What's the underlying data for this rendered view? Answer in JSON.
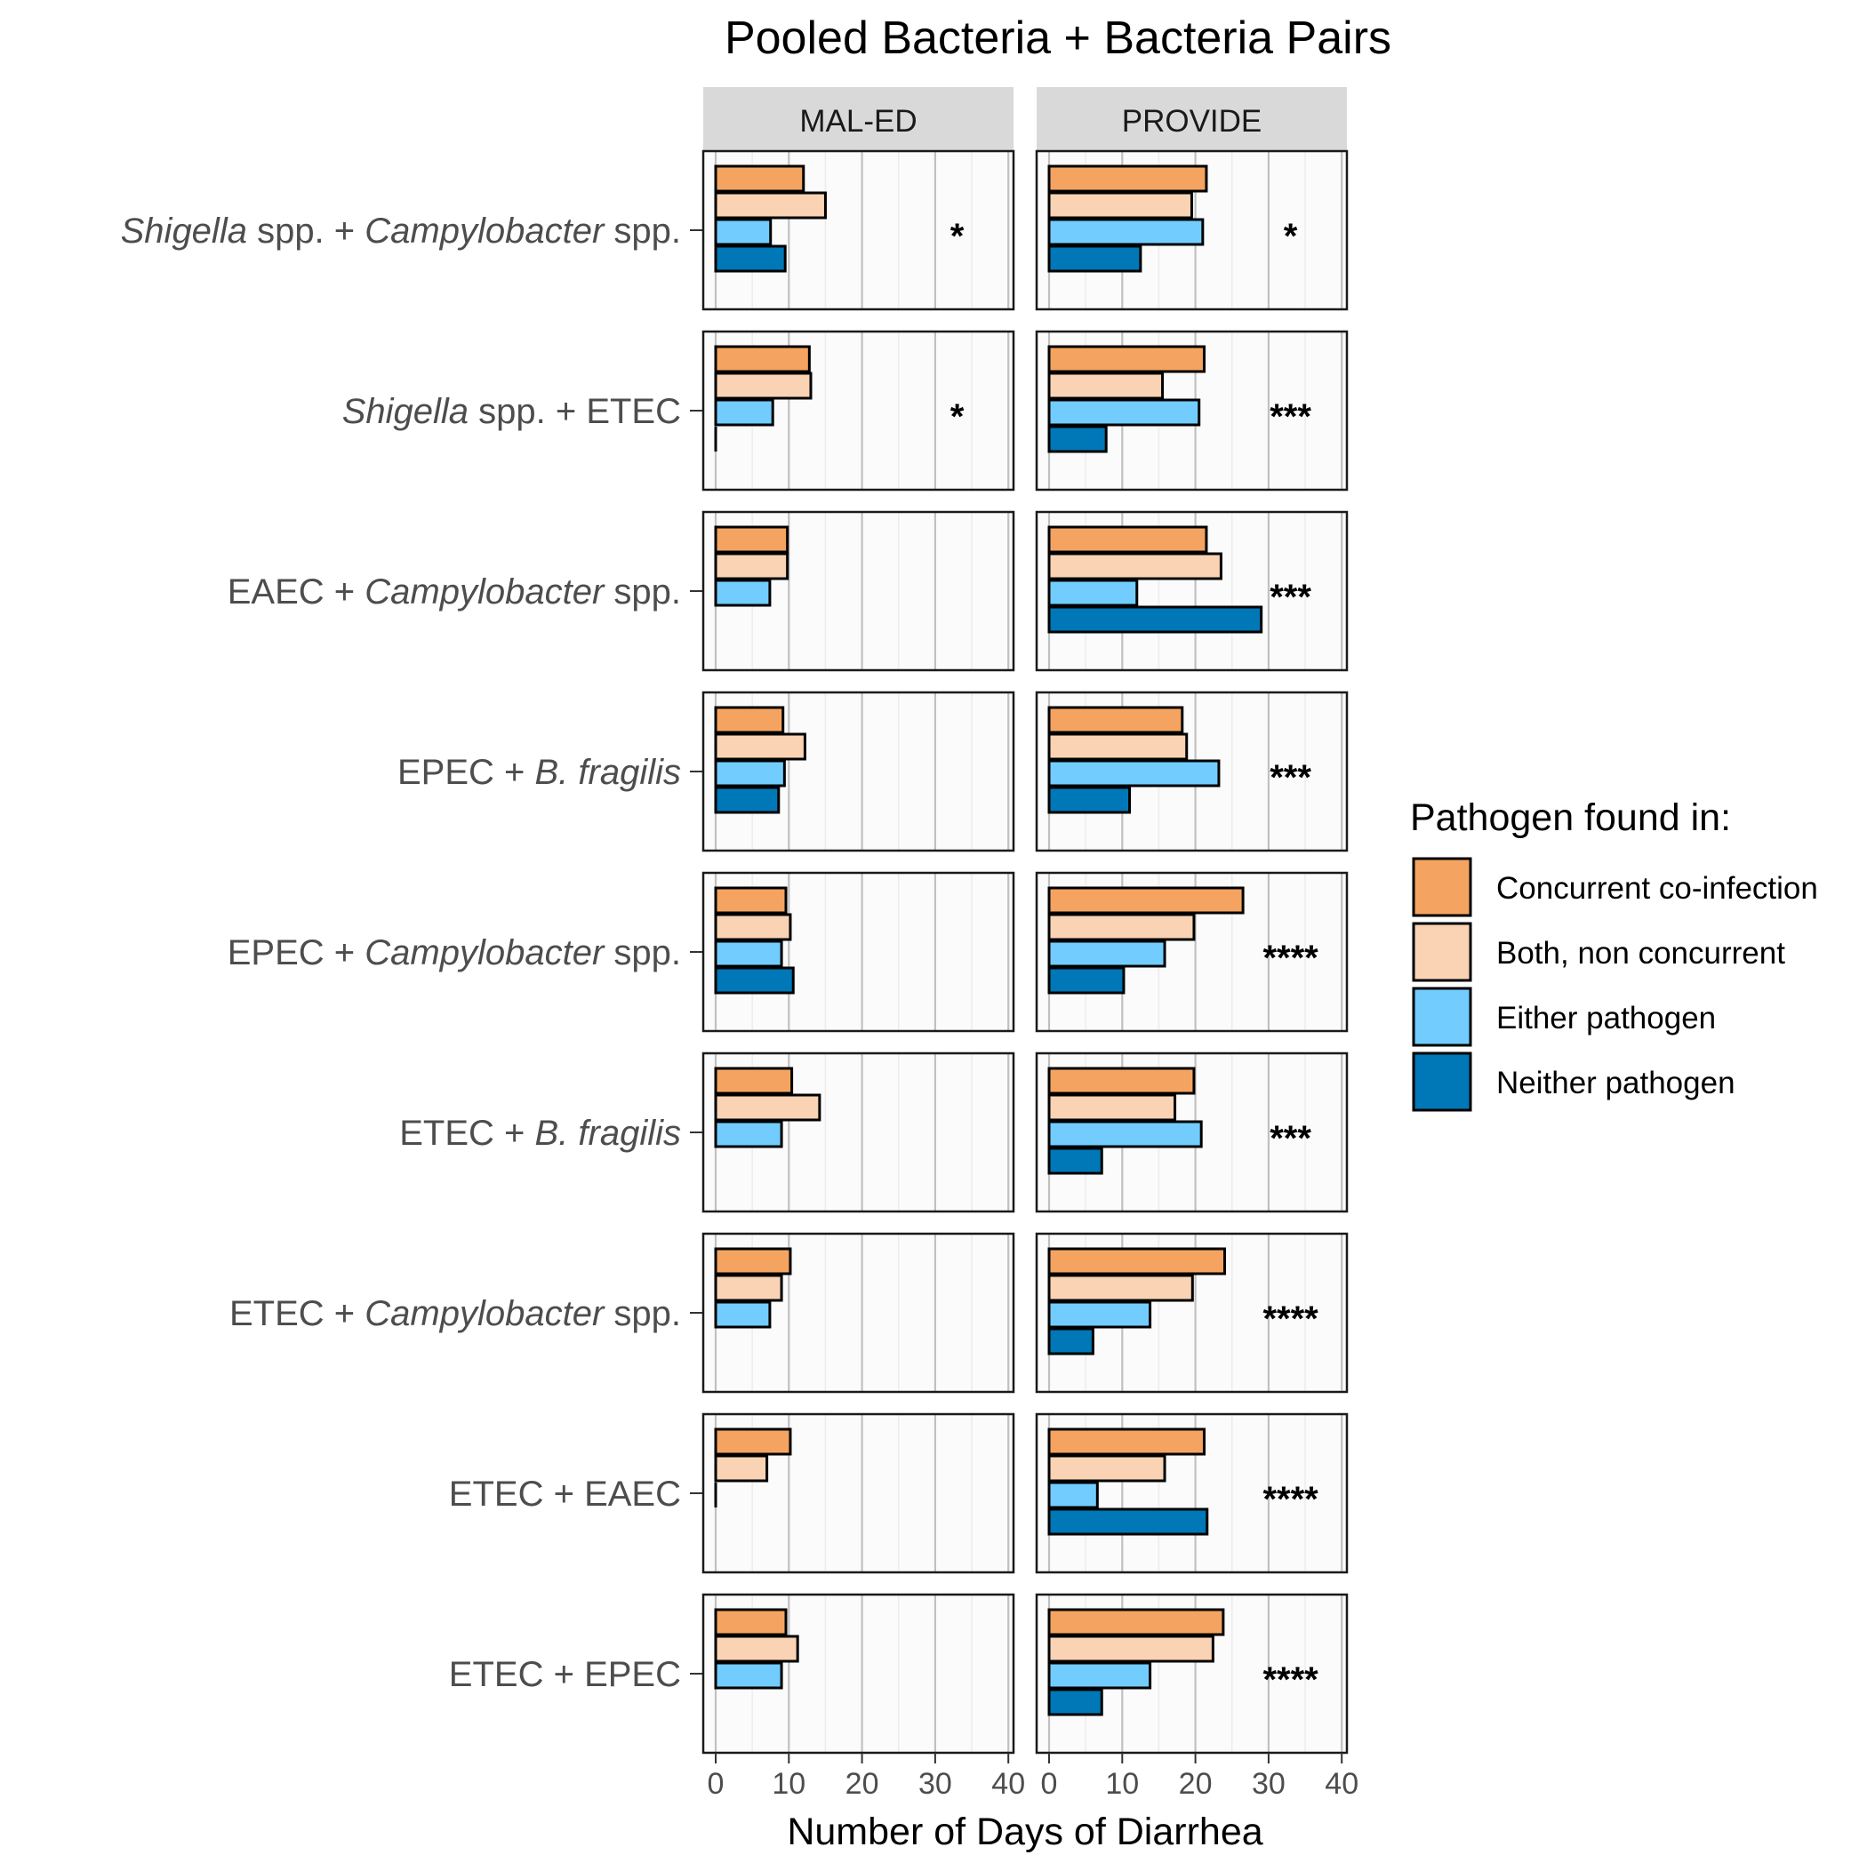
{
  "chart_data": {
    "type": "bar",
    "orientation": "horizontal",
    "title": "Pooled Bacteria + Bacteria Pairs",
    "xlabel": "Number of Days of Diarrhea",
    "ylabel": "",
    "xlim": [
      0,
      40
    ],
    "xticks": [
      0,
      10,
      20,
      30,
      40
    ],
    "grid": true,
    "legend_position": "right",
    "facets": [
      "MAL-ED",
      "PROVIDE"
    ],
    "legend": {
      "title": "Pathogen found in:",
      "entries": [
        {
          "name": "Concurrent co-infection",
          "color": "#F4A460"
        },
        {
          "name": "Both, non concurrent",
          "color": "#F9D3B4"
        },
        {
          "name": "Either pathogen",
          "color": "#72CDFE"
        },
        {
          "name": "Neither pathogen",
          "color": "#0077B6"
        }
      ]
    },
    "rows": [
      {
        "label_parts": [
          {
            "t": "Shigella",
            "i": true
          },
          {
            "t": " spp. + ",
            "i": false
          },
          {
            "t": "Campylobacter",
            "i": true
          },
          {
            "t": " spp.",
            "i": false
          }
        ],
        "maled": {
          "values": [
            12,
            15,
            7.5,
            9.5
          ],
          "sig": "*"
        },
        "provide": {
          "values": [
            21.5,
            19.5,
            21,
            12.5
          ],
          "sig": "*"
        }
      },
      {
        "label_parts": [
          {
            "t": "Shigella",
            "i": true
          },
          {
            "t": " spp. + ETEC",
            "i": false
          }
        ],
        "maled": {
          "values": [
            12.8,
            13,
            7.8,
            0
          ],
          "sig": "*"
        },
        "provide": {
          "values": [
            21.2,
            15.5,
            20.5,
            7.8
          ],
          "sig": "***"
        }
      },
      {
        "label_parts": [
          {
            "t": "EAEC + ",
            "i": false
          },
          {
            "t": "Campylobacter",
            "i": true
          },
          {
            "t": " spp.",
            "i": false
          }
        ],
        "maled": {
          "values": [
            9.8,
            9.8,
            7.4,
            null
          ],
          "sig": ""
        },
        "provide": {
          "values": [
            21.5,
            23.5,
            12,
            29
          ],
          "sig": "***"
        }
      },
      {
        "label_parts": [
          {
            "t": "EPEC + ",
            "i": false
          },
          {
            "t": "B. fragilis",
            "i": true
          }
        ],
        "maled": {
          "values": [
            9.2,
            12.2,
            9.4,
            8.6
          ],
          "sig": ""
        },
        "provide": {
          "values": [
            18.2,
            18.8,
            23.2,
            11
          ],
          "sig": "***"
        }
      },
      {
        "label_parts": [
          {
            "t": "EPEC + ",
            "i": false
          },
          {
            "t": "Campylobacter",
            "i": true
          },
          {
            "t": " spp.",
            "i": false
          }
        ],
        "maled": {
          "values": [
            9.6,
            10.2,
            9,
            10.6
          ],
          "sig": ""
        },
        "provide": {
          "values": [
            26.5,
            19.8,
            15.8,
            10.2
          ],
          "sig": "****"
        }
      },
      {
        "label_parts": [
          {
            "t": "ETEC + ",
            "i": false
          },
          {
            "t": "B. fragilis",
            "i": true
          }
        ],
        "maled": {
          "values": [
            10.4,
            14.2,
            9,
            null
          ],
          "sig": ""
        },
        "provide": {
          "values": [
            19.8,
            17.2,
            20.8,
            7.2
          ],
          "sig": "***"
        }
      },
      {
        "label_parts": [
          {
            "t": "ETEC + ",
            "i": false
          },
          {
            "t": "Campylobacter",
            "i": true
          },
          {
            "t": " spp.",
            "i": false
          }
        ],
        "maled": {
          "values": [
            10.2,
            9,
            7.4,
            null
          ],
          "sig": ""
        },
        "provide": {
          "values": [
            24,
            19.6,
            13.8,
            6
          ],
          "sig": "****"
        }
      },
      {
        "label_parts": [
          {
            "t": "ETEC + EAEC",
            "i": false
          }
        ],
        "maled": {
          "values": [
            10.2,
            7,
            0,
            null
          ],
          "sig": ""
        },
        "provide": {
          "values": [
            21.2,
            15.8,
            6.6,
            21.6
          ],
          "sig": "****"
        }
      },
      {
        "label_parts": [
          {
            "t": "ETEC + EPEC",
            "i": false
          }
        ],
        "maled": {
          "values": [
            9.6,
            11.2,
            9,
            null
          ],
          "sig": ""
        },
        "provide": {
          "values": [
            23.8,
            22.4,
            13.8,
            7.2
          ],
          "sig": "****"
        }
      }
    ]
  }
}
